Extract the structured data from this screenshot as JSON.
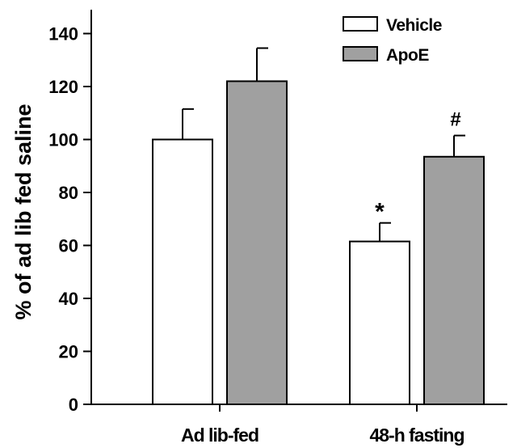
{
  "chart_data": {
    "type": "bar",
    "title": "",
    "xlabel": "",
    "ylabel": "% of ad lib fed saline",
    "ylim": [
      0,
      150
    ],
    "yticks": [
      "0",
      "20",
      "40",
      "60",
      "80",
      "100",
      "120",
      "140"
    ],
    "categories": [
      "Ad lib-fed",
      "48-h fasting"
    ],
    "series": [
      {
        "name": "Vehicle",
        "color": "#ffffff",
        "values": [
          100,
          61.5
        ],
        "errors": [
          11.5,
          7
        ]
      },
      {
        "name": "ApoE",
        "color": "#a0a0a0",
        "values": [
          122,
          93.5
        ],
        "errors": [
          12.5,
          8
        ]
      }
    ],
    "annotations": [
      {
        "text": "*",
        "series": "Vehicle",
        "category": "48-h fasting"
      },
      {
        "text": "#",
        "series": "ApoE",
        "category": "48-h fasting"
      }
    ],
    "legend_position": "top-right",
    "grid": false
  }
}
